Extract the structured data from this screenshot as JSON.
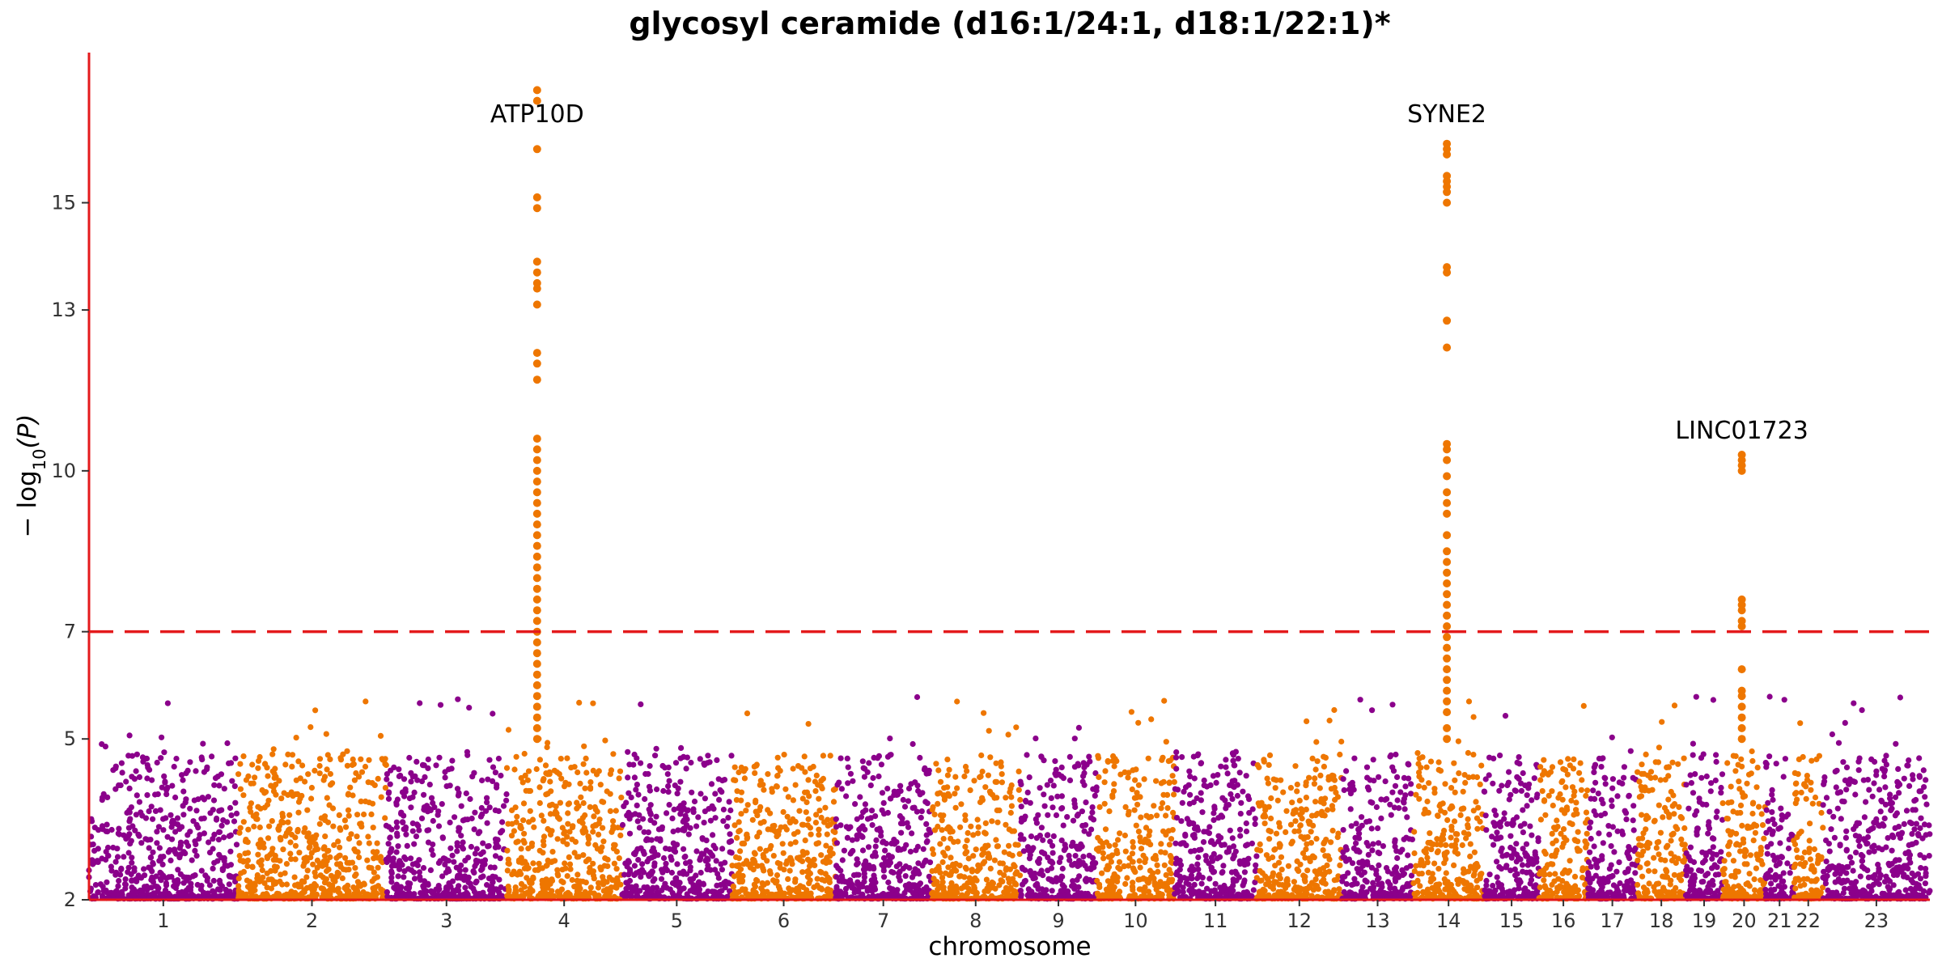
{
  "chart_data": {
    "type": "scatter",
    "subtype": "manhattan",
    "title": "glycosyl ceramide (d16:1/24:1, d18:1/22:1)*",
    "xlabel": "chromosome",
    "ylabel": "− log10(P)",
    "ylabel_parts": {
      "prefix": "− log",
      "subscript": "10",
      "suffix": "(P)"
    },
    "ylim": [
      2,
      17.8
    ],
    "yticks": [
      2,
      5,
      7,
      10,
      13,
      15
    ],
    "significance_threshold": 7,
    "grid": false,
    "legend": "none",
    "colors": {
      "odd": "#8B008B",
      "even": "#EE7600",
      "threshold": "#E41A1C",
      "axis": "#E41A1C"
    },
    "chromosomes": [
      {
        "label": "1",
        "start": 0,
        "end": 132
      },
      {
        "label": "2",
        "start": 132,
        "end": 264
      },
      {
        "label": "3",
        "start": 264,
        "end": 371
      },
      {
        "label": "4",
        "start": 371,
        "end": 473
      },
      {
        "label": "5",
        "start": 473,
        "end": 571
      },
      {
        "label": "6",
        "start": 571,
        "end": 663
      },
      {
        "label": "7",
        "start": 663,
        "end": 748
      },
      {
        "label": "8",
        "start": 748,
        "end": 827
      },
      {
        "label": "9",
        "start": 827,
        "end": 895
      },
      {
        "label": "10",
        "start": 895,
        "end": 964
      },
      {
        "label": "11",
        "start": 964,
        "end": 1037
      },
      {
        "label": "12",
        "start": 1037,
        "end": 1113
      },
      {
        "label": "13",
        "start": 1113,
        "end": 1176
      },
      {
        "label": "14",
        "start": 1176,
        "end": 1239
      },
      {
        "label": "15",
        "start": 1239,
        "end": 1288
      },
      {
        "label": "16",
        "start": 1288,
        "end": 1331
      },
      {
        "label": "17",
        "start": 1331,
        "end": 1375
      },
      {
        "label": "18",
        "start": 1375,
        "end": 1418
      },
      {
        "label": "19",
        "start": 1418,
        "end": 1451
      },
      {
        "label": "20",
        "start": 1451,
        "end": 1489
      },
      {
        "label": "21",
        "start": 1489,
        "end": 1514
      },
      {
        "label": "22",
        "start": 1514,
        "end": 1540
      },
      {
        "label": "23",
        "start": 1540,
        "end": 1635
      }
    ],
    "peak_points": [
      {
        "x": 398,
        "y": [
          17.1,
          16.9,
          16.0,
          15.1,
          14.9,
          13.9,
          13.7,
          13.5,
          13.4,
          13.1,
          12.2,
          12.0,
          11.7,
          10.6,
          10.4,
          10.2,
          10.0,
          9.8,
          9.6,
          9.4,
          9.2,
          9.0,
          8.8,
          8.6,
          8.4,
          8.2,
          8.0,
          7.8,
          7.6,
          7.4,
          7.2,
          7.0,
          6.8,
          6.6,
          6.4,
          6.2,
          6.0,
          5.8,
          5.6,
          5.4,
          5.2,
          5.0
        ]
      },
      {
        "x": 1206,
        "y": [
          16.1,
          16.0,
          15.9,
          15.5,
          15.4,
          15.3,
          15.2,
          15.0,
          13.8,
          13.7,
          12.8,
          12.3,
          10.5,
          10.4,
          10.2,
          9.9,
          9.6,
          9.4,
          9.2,
          8.8,
          8.5,
          8.3,
          8.1,
          7.9,
          7.7,
          7.5,
          7.3,
          7.1,
          6.9,
          6.7,
          6.5,
          6.3,
          6.1,
          5.9,
          5.7,
          5.5,
          5.2,
          5.0
        ]
      },
      {
        "x": 1468,
        "y": [
          10.3,
          10.2,
          10.1,
          10.0,
          7.6,
          7.5,
          7.4,
          7.2,
          7.1,
          6.3,
          5.9,
          5.8,
          5.6,
          5.4,
          5.2,
          5.0
        ]
      }
    ],
    "annotations": [
      {
        "label": "ATP10D",
        "x": 398,
        "y": 16.5
      },
      {
        "label": "SYNE2",
        "x": 1206,
        "y": 16.5
      },
      {
        "label": "LINC01723",
        "x": 1468,
        "y": 10.6
      }
    ]
  }
}
